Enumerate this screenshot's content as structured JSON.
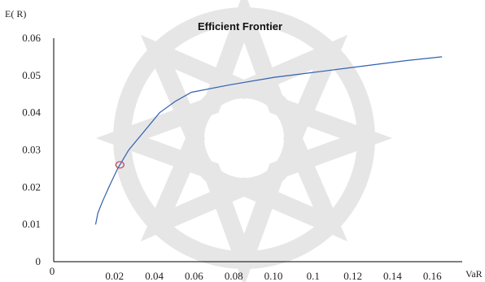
{
  "chart_data": {
    "type": "line",
    "title": "Efficient Frontier",
    "xlabel": "VaR",
    "ylabel": "E( R)",
    "x_ticks": [
      "0",
      "0.02",
      "0.04",
      "0.06",
      "0.08",
      "0.10",
      "0.1",
      "0.12",
      "0.14",
      "0.16"
    ],
    "y_ticks": [
      "0",
      "0.01",
      "0.02",
      "0.03",
      "0.04",
      "0.05",
      "0.06"
    ],
    "xlim": [
      0,
      0.18
    ],
    "ylim": [
      0,
      0.06
    ],
    "grid": false,
    "legend": "none",
    "series": [
      {
        "color": "#3060b0",
        "points": [
          [
            0.019,
            0.01
          ],
          [
            0.02,
            0.013
          ],
          [
            0.022,
            0.016
          ],
          [
            0.025,
            0.02
          ],
          [
            0.029,
            0.025
          ],
          [
            0.034,
            0.03
          ],
          [
            0.041,
            0.035
          ],
          [
            0.048,
            0.04
          ],
          [
            0.055,
            0.043
          ],
          [
            0.0625,
            0.0455
          ],
          [
            0.08,
            0.0475
          ],
          [
            0.1,
            0.0495
          ],
          [
            0.12,
            0.051
          ],
          [
            0.14,
            0.0525
          ],
          [
            0.16,
            0.054
          ],
          [
            0.176,
            0.055
          ]
        ]
      }
    ],
    "annotations": [
      {
        "type": "marker",
        "x": 0.03,
        "y": 0.026,
        "color": "#c04060"
      }
    ]
  }
}
